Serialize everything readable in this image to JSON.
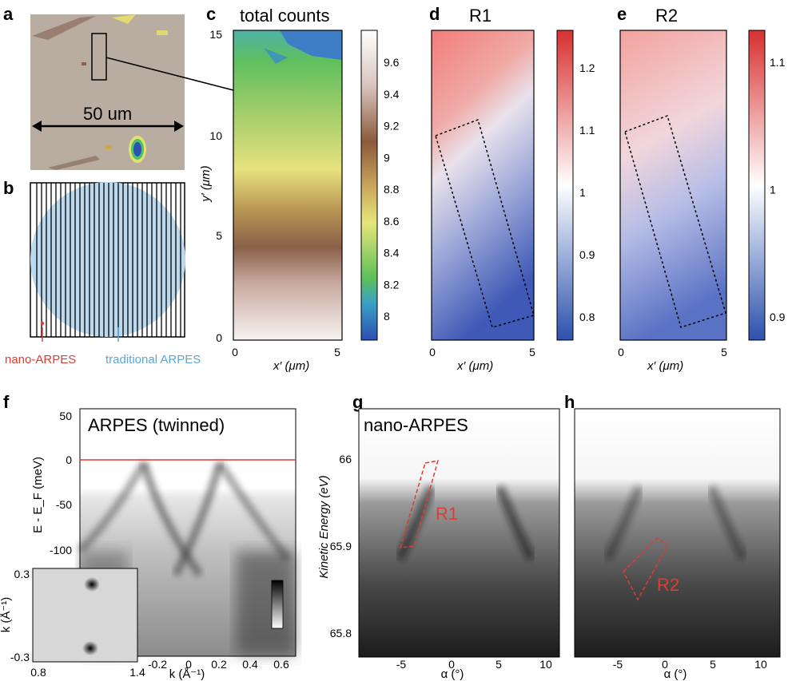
{
  "panel_labels": {
    "a": "a",
    "b": "b",
    "c": "c",
    "d": "d",
    "e": "e",
    "f": "f",
    "g": "g",
    "h": "h"
  },
  "panel_a": {
    "scale_text": "50 um"
  },
  "panel_b": {
    "nano_label": "nano-ARPES",
    "traditional_label": "traditional ARPES",
    "colors": {
      "nano": "#e03c31",
      "traditional": "#5aa7d8",
      "spot": "#bcd9ee"
    }
  },
  "panel_c": {
    "title": "total counts",
    "y_axis_label": "y′ (μm)",
    "x_axis_label": "x′ (μm)",
    "x_ticks": [
      "0",
      "5"
    ],
    "y_ticks": [
      "0",
      "5",
      "10",
      "15"
    ],
    "colorbar_ticks": [
      "9.6",
      "9.4",
      "9.2",
      "9",
      "8.8",
      "8.6",
      "8.4",
      "8.2",
      "8"
    ]
  },
  "panel_d": {
    "title": "R1",
    "x_axis_label": "x′ (μm)",
    "x_ticks": [
      "0",
      "5"
    ],
    "colorbar_ticks": [
      "1.2",
      "1.1",
      "1",
      "0.9",
      "0.8"
    ]
  },
  "panel_e": {
    "title": "R2",
    "x_axis_label": "x′ (μm)",
    "x_ticks": [
      "0",
      "5"
    ],
    "colorbar_ticks": [
      "1.1",
      "1",
      "0.9"
    ]
  },
  "panel_f": {
    "title": "ARPES (twinned)",
    "y_axis_label": "E - E_F (meV)",
    "x_axis_label": "k (Å⁻¹)",
    "x_ticks": [
      "-0.2",
      "0",
      "0.2",
      "0.4",
      "0.6"
    ],
    "y_ticks": [
      "50",
      "0",
      "-50",
      "-100"
    ],
    "inset_x_ticks": [
      "0.8",
      "1.4"
    ],
    "inset_y_ticks": [
      "0.3",
      "-0.3"
    ],
    "inset_y_label": "k (Å⁻¹)",
    "fermi_line_color": "#e03c31"
  },
  "panel_g": {
    "title": "nano-ARPES",
    "y_axis_label": "Kinetic Energy (eV)",
    "x_axis_label": "α (°)",
    "x_ticks": [
      "-5",
      "0",
      "5",
      "10"
    ],
    "y_ticks": [
      "66",
      "65.9",
      "65.8"
    ],
    "region_label": "R1"
  },
  "panel_h": {
    "x_axis_label": "α (°)",
    "x_ticks": [
      "-5",
      "0",
      "5",
      "10"
    ],
    "region_label": "R2"
  }
}
